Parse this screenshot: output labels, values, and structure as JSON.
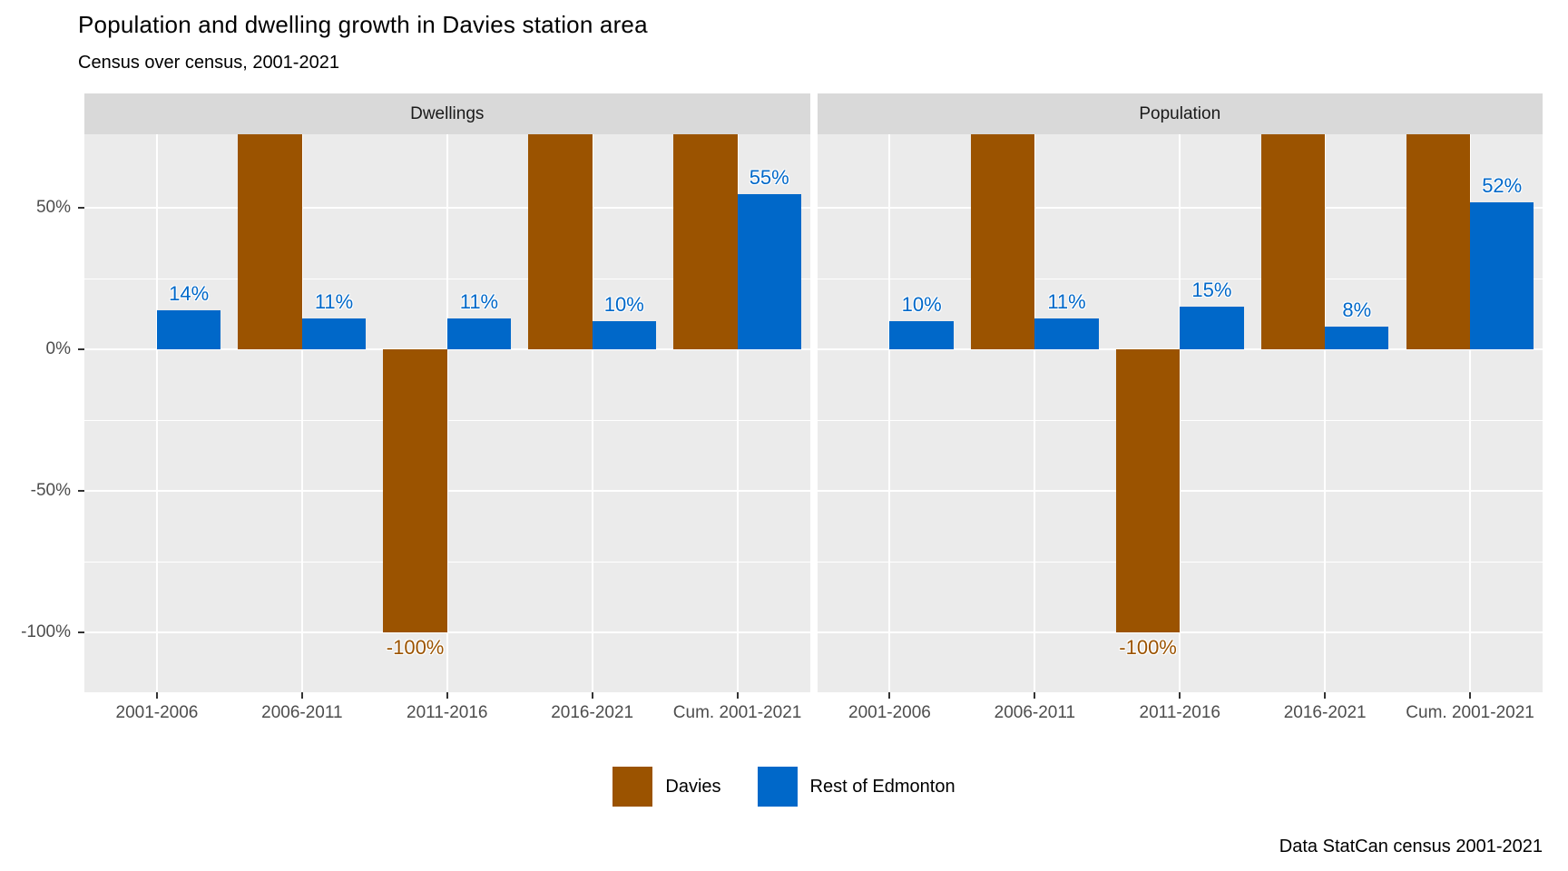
{
  "title": "Population and dwelling growth in Davies station area",
  "subtitle": "Census over census, 2001-2021",
  "caption": "Data StatCan census 2001-2021",
  "colors": {
    "davies": "#9b5300",
    "rest_of_edmonton": "#0068c9",
    "panel_background": "#ebebeb",
    "strip_background": "#d9d9d9",
    "gridline": "#ffffff",
    "axis_text": "#4d4d4d"
  },
  "legend": {
    "items": [
      {
        "label": "Davies",
        "color": "#9b5300"
      },
      {
        "label": "Rest of Edmonton",
        "color": "#0068c9"
      }
    ]
  },
  "chart_data": {
    "type": "bar",
    "facets": [
      {
        "label": "Dwellings",
        "categories": [
          "2001-2006",
          "2006-2011",
          "2011-2016",
          "2016-2021",
          "Cum. 2001-2021"
        ],
        "series": [
          {
            "name": "Davies",
            "color": "#9b5300",
            "values": [
              0,
              "off-scale-high",
              -100,
              "off-scale-high",
              "off-scale-high"
            ],
            "labels": [
              "",
              "",
              "-100%",
              "",
              ""
            ]
          },
          {
            "name": "Rest of Edmonton",
            "color": "#0068c9",
            "values": [
              14,
              11,
              11,
              10,
              55
            ],
            "labels": [
              "14%",
              "11%",
              "11%",
              "10%",
              "55%"
            ]
          }
        ]
      },
      {
        "label": "Population",
        "categories": [
          "2001-2006",
          "2006-2011",
          "2011-2016",
          "2016-2021",
          "Cum. 2001-2021"
        ],
        "series": [
          {
            "name": "Davies",
            "color": "#9b5300",
            "values": [
              0,
              "off-scale-high",
              -100,
              "off-scale-high",
              "off-scale-high"
            ],
            "labels": [
              "",
              "",
              "-100%",
              "",
              ""
            ]
          },
          {
            "name": "Rest of Edmonton",
            "color": "#0068c9",
            "values": [
              10,
              11,
              15,
              8,
              52
            ],
            "labels": [
              "10%",
              "11%",
              "15%",
              "8%",
              "52%"
            ]
          }
        ]
      }
    ],
    "ylabel": "",
    "xlabel": "",
    "ylim": [
      -121,
      76
    ],
    "y_major_ticks": [
      50,
      0,
      -50,
      -100
    ],
    "y_major_tick_labels": [
      "50%",
      "0%",
      "-50%",
      "-100%"
    ],
    "y_minor_ticks": [
      25,
      -25,
      -75
    ],
    "grid": true,
    "legend_position": "bottom",
    "note": "Davies bars marked off-scale-high are clipped at the top of the panel"
  }
}
